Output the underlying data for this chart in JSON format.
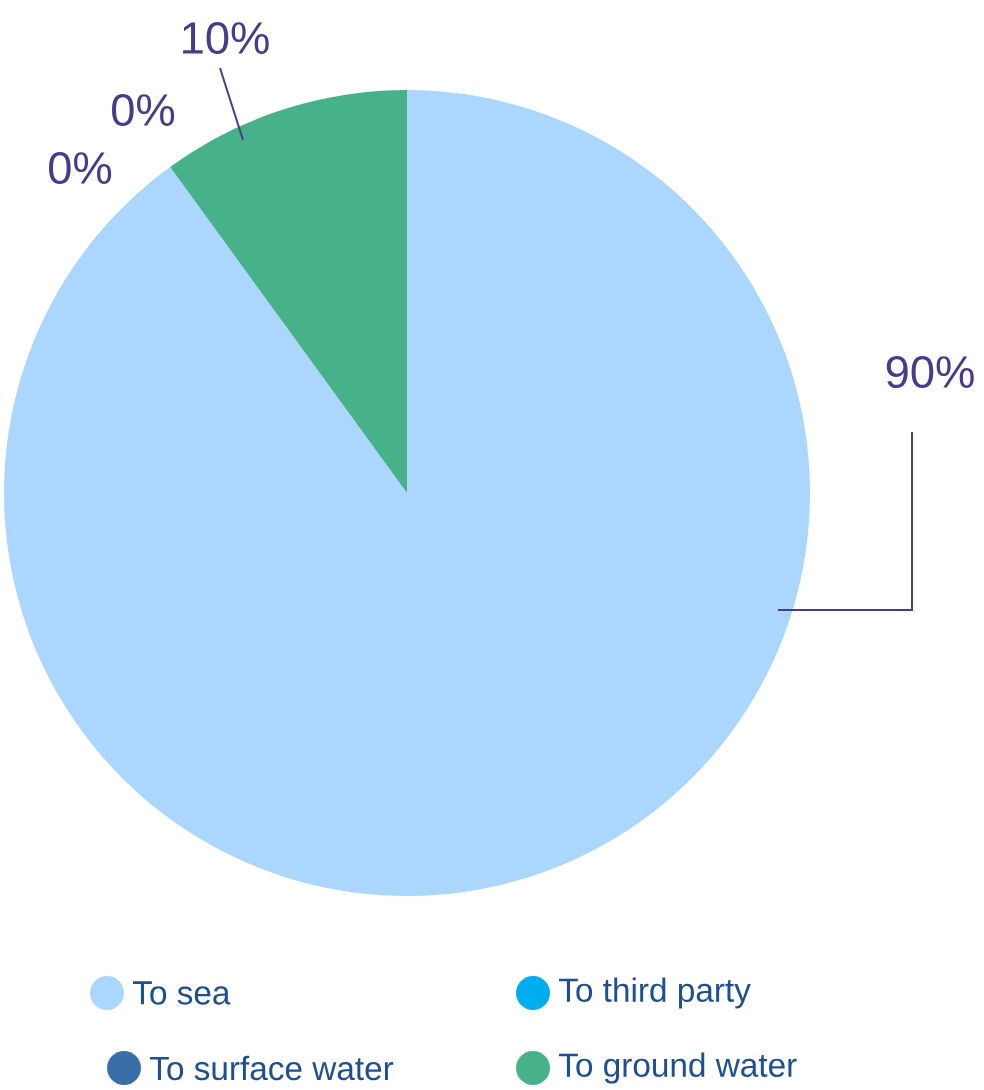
{
  "chart_data": {
    "type": "pie",
    "categories": [
      "To sea",
      "To third party",
      "To surface water",
      "To ground water"
    ],
    "values": [
      90,
      0,
      0,
      10
    ],
    "colors": [
      "#abd6fd",
      "#00aeef",
      "#3a6ea8",
      "#47b28a"
    ],
    "value_labels": [
      "90%",
      "0%",
      "0%",
      "10%"
    ],
    "legend": "bottom"
  }
}
